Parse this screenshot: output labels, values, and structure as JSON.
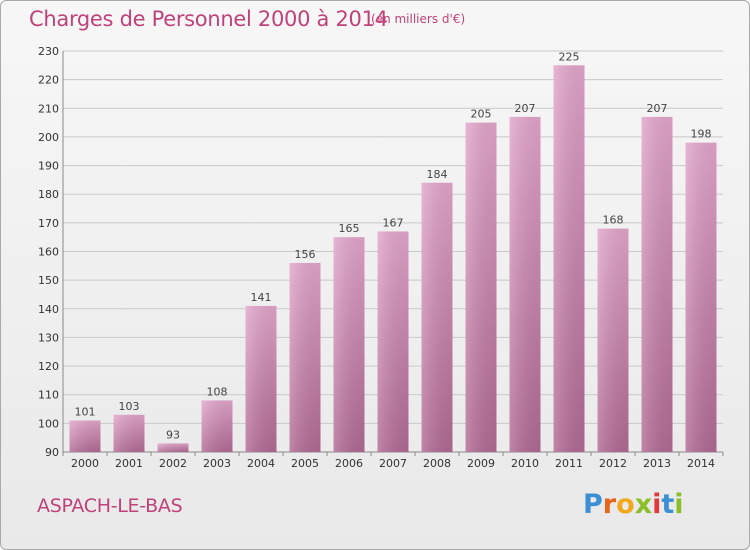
{
  "header": {
    "title": "Charges de Personnel 2000 à 2014",
    "subtitle": "(en milliers d'€)"
  },
  "footer": {
    "commune": "ASPACH-LE-BAS",
    "logo_text": "Proxiti",
    "logo_letters": [
      {
        "ch": "P",
        "color": "#3b8fd3"
      },
      {
        "ch": "r",
        "color": "#e8641b"
      },
      {
        "ch": "o",
        "color": "#f2a81d"
      },
      {
        "ch": "x",
        "color": "#8bbf2a"
      },
      {
        "ch": "i",
        "color": "#e03a3a"
      },
      {
        "ch": "t",
        "color": "#3b8fd3"
      },
      {
        "ch": "i",
        "color": "#8bbf2a"
      }
    ]
  },
  "colors": {
    "accent": "#c0427b",
    "bar_top": "#e3a6cc",
    "bar_bottom": "#b26a94"
  },
  "chart_data": {
    "type": "bar",
    "title": "Charges de Personnel 2000 à 2014",
    "subtitle": "(en milliers d'€)",
    "categories": [
      "2000",
      "2001",
      "2002",
      "2003",
      "2004",
      "2005",
      "2006",
      "2007",
      "2008",
      "2009",
      "2010",
      "2011",
      "2012",
      "2013",
      "2014"
    ],
    "values": [
      101,
      103,
      93,
      108,
      141,
      156,
      165,
      167,
      184,
      205,
      207,
      225,
      168,
      207,
      198
    ],
    "ylim": [
      90,
      230
    ],
    "yticks": [
      90,
      100,
      110,
      120,
      130,
      140,
      150,
      160,
      170,
      180,
      190,
      200,
      210,
      220,
      230
    ],
    "grid": true
  }
}
